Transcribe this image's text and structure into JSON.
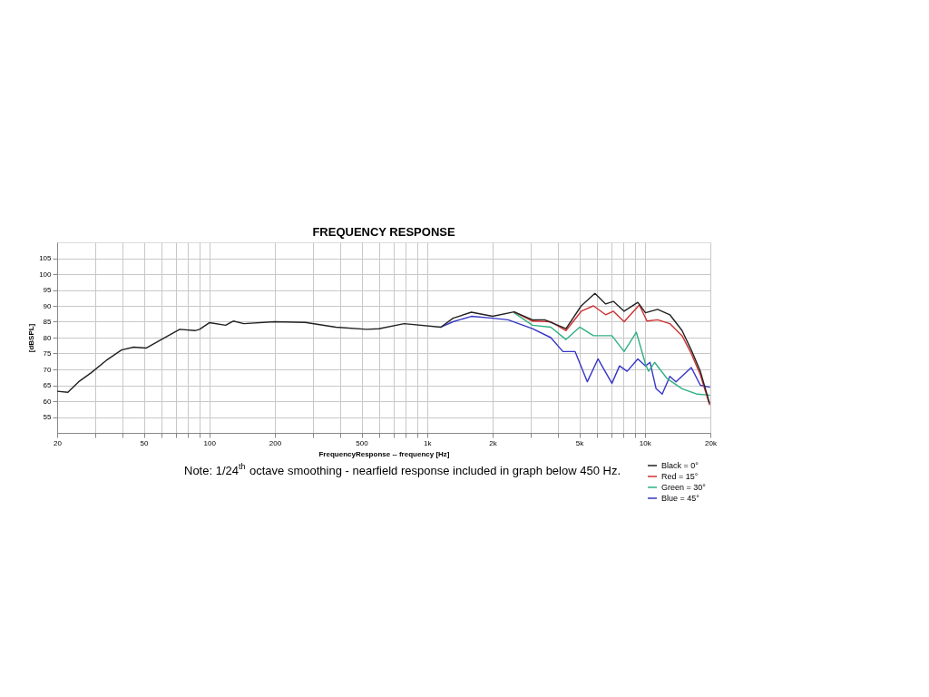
{
  "chart_data": {
    "type": "line",
    "title": "FREQUENCY RESPONSE",
    "xlabel": "FrequencyResponse -- frequency [Hz]",
    "ylabel": "[dBSPL]",
    "log": "x",
    "grid": true,
    "legend": "bottom right",
    "line_style": "solid",
    "marker": "none",
    "xlim": [
      20,
      20000
    ],
    "ylim": [
      50,
      110
    ],
    "xticks": [
      20,
      {
        "value": 30,
        "label": null
      },
      {
        "value": 40,
        "label": null
      },
      50,
      {
        "value": 60,
        "label": null
      },
      {
        "value": 70,
        "label": null
      },
      {
        "value": 80,
        "label": null
      },
      {
        "value": 90,
        "label": null
      },
      100,
      200,
      {
        "value": 300,
        "label": null
      },
      {
        "value": 400,
        "label": null
      },
      500,
      {
        "value": 600,
        "label": null
      },
      {
        "value": 700,
        "label": null
      },
      {
        "value": 800,
        "label": null
      },
      {
        "value": 900,
        "label": null
      },
      {
        "value": 1000,
        "label": "1k"
      },
      {
        "value": 2000,
        "label": "2k"
      },
      {
        "value": 3000,
        "label": null
      },
      {
        "value": 4000,
        "label": null
      },
      {
        "value": 5000,
        "label": "5k"
      },
      {
        "value": 6000,
        "label": null
      },
      {
        "value": 7000,
        "label": null
      },
      {
        "value": 8000,
        "label": null
      },
      {
        "value": 9000,
        "label": null
      },
      {
        "value": 10000,
        "label": "10k"
      },
      {
        "value": 20000,
        "label": "20k"
      }
    ],
    "yticks": [
      55,
      60,
      65,
      70,
      75,
      80,
      85,
      90,
      95,
      100,
      105
    ],
    "annotations": [
      "Note: 1/24$^{th}$ octave smoothing - nearfield response included in graph below 450 Hz."
    ],
    "series": [
      {
        "name": "Black = 0°",
        "color": "#222222",
        "x": [
          20,
          22.4,
          25.1,
          28.6,
          33.6,
          39.5,
          44.9,
          51.2,
          60.2,
          73.1,
          85.9,
          90.2,
          100,
          118.8,
          128.8,
          144.2,
          199.4,
          275.6,
          381,
          527,
          600,
          785,
          1157,
          1316,
          1597,
          2002,
          2510,
          3047,
          3467,
          4346,
          5106,
          5902,
          6607,
          7175,
          8035,
          9287,
          10070,
          11450,
          13030,
          14830,
          16340,
          17990,
          19820
        ],
        "values": [
          63.1,
          62.8,
          66.1,
          68.9,
          72.8,
          76.1,
          77,
          76.7,
          79.4,
          82.6,
          82.2,
          82.6,
          84.7,
          83.9,
          85.2,
          84.4,
          85,
          84.8,
          83.3,
          82.6,
          82.8,
          84.4,
          83.3,
          86.1,
          88,
          86.7,
          88.1,
          85.6,
          85.6,
          82.8,
          90,
          93.9,
          90.6,
          91.4,
          88.3,
          91.1,
          87.8,
          88.9,
          87.2,
          82.2,
          76.1,
          69.4,
          59.4
        ]
      },
      {
        "name": "Red = 15°",
        "color": "#d03030",
        "x": [
          2510,
          3047,
          3700,
          4346,
          5106,
          5808,
          6607,
          7175,
          8035,
          9437,
          10230,
          11450,
          13030,
          14830,
          16340,
          17990,
          19820
        ],
        "values": [
          88.1,
          85.2,
          85,
          82.2,
          88.3,
          90,
          87.2,
          88.3,
          85,
          90.3,
          85.2,
          85.6,
          84.4,
          80.6,
          75,
          68.3,
          58.9
        ]
      },
      {
        "name": "Green = 30°",
        "color": "#30b080",
        "x": [
          2510,
          3047,
          3700,
          4346,
          5023,
          5808,
          7063,
          8035,
          9141,
          10070,
          10400,
          11090,
          12620,
          14830,
          17420,
          19820
        ],
        "values": [
          87.8,
          83.9,
          83.3,
          79.4,
          83.3,
          80.6,
          80.6,
          75.6,
          81.7,
          71.7,
          69.4,
          72.2,
          67.2,
          63.9,
          62.2,
          61.9
        ]
      },
      {
        "name": "Blue = 45°",
        "color": "#3535c8",
        "x": [
          1157,
          1316,
          1597,
          2002,
          2353,
          3047,
          3700,
          4207,
          4786,
          5445,
          6095,
          7063,
          7654,
          8295,
          9287,
          10070,
          10570,
          11270,
          12020,
          13030,
          13900,
          16340,
          17990,
          19820
        ],
        "values": [
          83.3,
          85,
          86.7,
          86.1,
          85.6,
          82.8,
          80,
          75.6,
          75.6,
          66.1,
          73.3,
          65.6,
          71.1,
          69.4,
          73.3,
          71.1,
          72.2,
          63.9,
          62.2,
          67.8,
          66.1,
          70.6,
          65,
          64.4
        ]
      }
    ]
  }
}
